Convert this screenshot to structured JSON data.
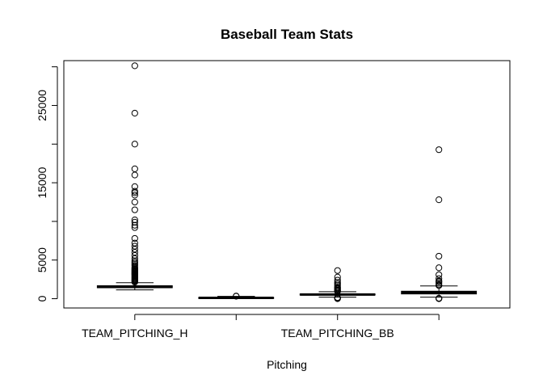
{
  "chart_data": {
    "type": "box",
    "title": "Baseball Team Stats",
    "xlabel": "Pitching",
    "ylabel": "",
    "ylim": [
      -1200,
      30800
    ],
    "yticks": [
      0,
      5000,
      15000,
      25000
    ],
    "x_tick_labels": [
      "TEAM_PITCHING_H",
      "",
      "TEAM_PITCHING_BB",
      ""
    ],
    "grid": false,
    "boxes": [
      {
        "whisker_low": 1137,
        "q1": 1419,
        "median": 1518,
        "q3": 1682,
        "whisker_high": 2065,
        "outliers": [
          2150,
          2250,
          2350,
          2450,
          2550,
          2650,
          2750,
          2850,
          2950,
          3050,
          3150,
          3250,
          3350,
          3450,
          3550,
          3650,
          3750,
          3850,
          3950,
          4100,
          4300,
          4500,
          4700,
          4900,
          5200,
          5600,
          6000,
          6400,
          6800,
          7200,
          7800,
          9200,
          9500,
          9900,
          10200,
          11500,
          12500,
          13400,
          13700,
          13900,
          14500,
          16000,
          16800,
          20000,
          24000,
          30132
        ]
      },
      {
        "whisker_low": 0,
        "q1": 50,
        "median": 107,
        "q3": 150,
        "whisker_high": 300,
        "outliers": [
          320,
          343
        ]
      },
      {
        "whisker_low": 200,
        "q1": 476,
        "median": 536,
        "q3": 611,
        "whisker_high": 900,
        "outliers": [
          0,
          50,
          100,
          150,
          950,
          1050,
          1150,
          1300,
          1400,
          1500,
          1700,
          1900,
          2100,
          2400,
          2800,
          3645
        ]
      },
      {
        "whisker_low": 200,
        "q1": 615,
        "median": 814,
        "q3": 968,
        "whisker_high": 1650,
        "outliers": [
          0,
          30,
          60,
          1700,
          1800,
          2000,
          2200,
          2300,
          2600,
          3100,
          4000,
          5500,
          12800,
          19278
        ]
      }
    ]
  }
}
